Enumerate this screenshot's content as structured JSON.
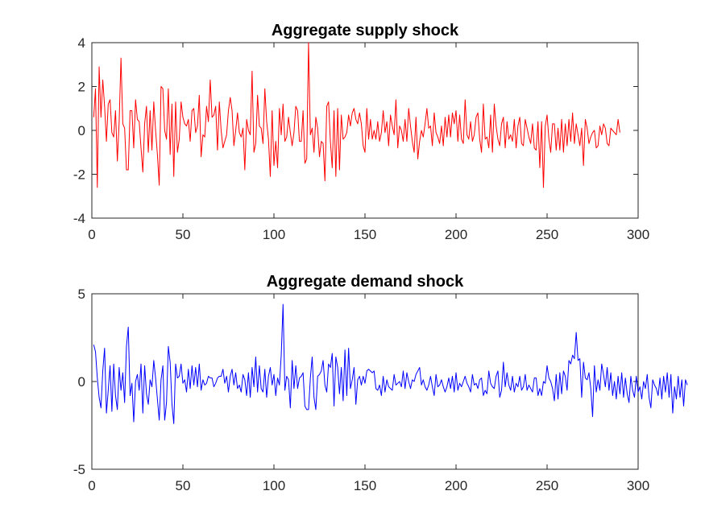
{
  "chart_data": [
    {
      "type": "line",
      "title": "Aggregate supply shock",
      "xlabel": "",
      "ylabel": "",
      "xlim": [
        0,
        300
      ],
      "ylim": [
        -4,
        4
      ],
      "xticks": [
        0,
        50,
        100,
        150,
        200,
        250,
        300
      ],
      "yticks": [
        -4,
        -2,
        0,
        2,
        4
      ],
      "grid": false,
      "series": [
        {
          "color": "#ff0000",
          "x_start": 1,
          "values": [
            0.6,
            1.9,
            -2.6,
            2.9,
            0.6,
            2.3,
            1.1,
            -0.5,
            1.2,
            1.4,
            -0.1,
            -0.3,
            0.9,
            -1.4,
            0.4,
            3.3,
            0.3,
            0.1,
            -1.8,
            -1.8,
            0.9,
            0.9,
            -0.8,
            1.4,
            0.5,
            0.4,
            -0.8,
            -1.9,
            0.3,
            1.1,
            -1.0,
            0.9,
            -0.9,
            1.3,
            0.0,
            -1.1,
            -2.5,
            2.0,
            1.9,
            0.0,
            -0.4,
            1.9,
            -1.1,
            1.2,
            -2.1,
            1.3,
            -1.0,
            -0.4,
            1.3,
            0.6,
            0.3,
            0.2,
            0.5,
            -0.5,
            0.9,
            1.0,
            -0.1,
            0.2,
            1.6,
            -1.2,
            -0.2,
            -0.3,
            1.1,
            0.4,
            2.3,
            0.6,
            0.7,
            1.1,
            -0.9,
            1.3,
            0.0,
            -0.8,
            -0.5,
            -0.2,
            0.9,
            1.5,
            0.9,
            -0.7,
            0.0,
            0.8,
            -0.1,
            -0.3,
            0.1,
            -1.8,
            0.5,
            0.0,
            -0.2,
            2.7,
            -1.0,
            -0.6,
            1.6,
            0.2,
            0.1,
            -0.6,
            1.9,
            0.4,
            -0.4,
            -2.1,
            0.9,
            -1.6,
            -0.5,
            -1.7,
            1.0,
            -0.2,
            1.2,
            -0.5,
            -0.3,
            0.6,
            -0.1,
            -0.7,
            -0.1,
            1.1,
            0.9,
            -0.5,
            -0.5,
            0.9,
            -1.5,
            -1.3,
            4.0,
            -0.2,
            0.1,
            -1.0,
            0.6,
            0.1,
            -1.2,
            -0.5,
            -0.6,
            -2.3,
            1.1,
            1.3,
            -0.5,
            -1.7,
            0.9,
            -2.1,
            1.0,
            -1.8,
            0.7,
            -0.4,
            -0.3,
            -0.1,
            0.7,
            0.2,
            0.8,
            1.0,
            0.5,
            0.3,
            0.8,
            0.3,
            -0.7,
            -1.0,
            1.0,
            -0.4,
            0.5,
            -0.4,
            0.0,
            -0.4,
            0.4,
            -0.5,
            -0.1,
            0.9,
            -0.1,
            0.4,
            -0.7,
            0.7,
            0.2,
            -0.2,
            1.4,
            -0.8,
            0.2,
            0.0,
            -0.5,
            0.5,
            -0.5,
            1.0,
            0.2,
            -0.5,
            -1.0,
            0.6,
            -1.3,
            -0.5,
            0.0,
            -0.3,
            0.3,
            1.0,
            0.1,
            0.2,
            -0.7,
            0.8,
            -0.1,
            -0.3,
            -0.6,
            0.2,
            -0.7,
            0.6,
            -0.3,
            0.7,
            -0.3,
            0.8,
            0.3,
            0.9,
            -0.5,
            0.7,
            -0.4,
            -0.6,
            1.4,
            -0.2,
            -0.4,
            0.4,
            -0.5,
            -0.2,
            0.6,
            0.8,
            -0.4,
            -1.0,
            1.2,
            -0.4,
            -0.3,
            -0.8,
            0.7,
            -1.0,
            1.2,
            0.2,
            -0.4,
            -0.7,
            0.3,
            0.6,
            -0.8,
            0.4,
            -0.4,
            -0.2,
            -0.5,
            0.5,
            -0.8,
            0.2,
            0.6,
            -0.6,
            -0.7,
            0.5,
            0.1,
            -0.3,
            -0.6,
            0.3,
            -0.8,
            -0.9,
            0.4,
            -1.7,
            0.4,
            -2.6,
            0.2,
            0.7,
            -0.4,
            -1.0,
            0.3,
            0.3,
            -0.9,
            0.1,
            -0.9,
            0.5,
            -1.0,
            0.3,
            -0.7,
            0.5,
            -0.5,
            0.8,
            -0.6,
            0.3,
            -0.2,
            -0.7,
            0.1,
            -1.6,
            0.5,
            0.1,
            -0.6,
            -0.3,
            -0.1,
            0.0,
            -0.8,
            -0.7,
            0.2,
            -0.2,
            0.3,
            0.1,
            -0.6,
            -0.7,
            0.1,
            0.0,
            -0.1,
            -0.2,
            0.5,
            -0.1
          ]
        }
      ]
    },
    {
      "type": "line",
      "title": "Aggregate demand shock",
      "xlabel": "",
      "ylabel": "",
      "xlim": [
        0,
        300
      ],
      "ylim": [
        -5,
        5
      ],
      "xticks": [
        0,
        50,
        100,
        150,
        200,
        250,
        300
      ],
      "yticks": [
        -5,
        0,
        5
      ],
      "grid": false,
      "series": [
        {
          "color": "#0000ff",
          "x_start": 1,
          "values": [
            2.1,
            1.7,
            0.2,
            -0.9,
            -1.5,
            0.6,
            1.9,
            -1.8,
            -0.5,
            0.9,
            -1.7,
            1.0,
            -0.8,
            -1.6,
            0.8,
            -0.5,
            0.5,
            -1.2,
            2.0,
            3.1,
            -0.8,
            -0.1,
            -2.3,
            0.0,
            0.4,
            -0.5,
            1.0,
            -1.8,
            0.9,
            -0.7,
            -1.3,
            0.1,
            -0.3,
            1.2,
            0.2,
            -1.0,
            -2.2,
            0.1,
            0.9,
            -2.2,
            -1.2,
            2.0,
            1.1,
            -1.3,
            -2.4,
            1.0,
            0.2,
            0.3,
            1.0,
            -0.1,
            0.1,
            -0.6,
            0.7,
            -0.4,
            0.9,
            -0.2,
            0.8,
            -0.3,
            1.0,
            -0.5,
            0.1,
            -0.2,
            -0.1,
            0.3,
            0.2,
            0.2,
            -0.3,
            -0.1,
            0.2,
            0.3,
            0.3,
            0.7,
            -0.1,
            0.3,
            -0.6,
            0.3,
            0.7,
            -0.2,
            0.5,
            -0.4,
            -0.2,
            -0.6,
            0.4,
            0.1,
            -0.8,
            0.5,
            -0.9,
            0.8,
            -0.3,
            1.4,
            -0.6,
            0.9,
            -0.4,
            -0.6,
            0.7,
            -0.9,
            0.3,
            0.8,
            -0.2,
            0.4,
            -0.8,
            0.2,
            -0.2,
            1.5,
            4.4,
            -0.5,
            0.3,
            0.1,
            -1.5,
            1.2,
            -0.4,
            0.9,
            -0.4,
            0.2,
            0.3,
            0.5,
            -1.4,
            -1.6,
            -1.6,
            0.2,
            1.4,
            -0.9,
            -1.6,
            0.3,
            0.4,
            0.6,
            1.2,
            -0.2,
            -0.6,
            1.0,
            0.8,
            1.6,
            -1.4,
            1.4,
            0.8,
            -0.7,
            0.8,
            -1.1,
            1.8,
            -0.8,
            1.9,
            -0.4,
            0.1,
            0.8,
            -1.3,
            0.1,
            0.3,
            -0.2,
            0.3,
            -0.1,
            0.6,
            0.7,
            0.6,
            0.5,
            0.6,
            -0.4,
            -0.5,
            -0.2,
            -0.8,
            0.3,
            -0.6,
            0.1,
            -0.3,
            -0.4,
            -0.5,
            0.4,
            -0.2,
            -0.1,
            0.0,
            -0.3,
            0.6,
            -0.4,
            0.5,
            0.0,
            -0.4,
            0.1,
            0.0,
            0.4,
            0.6,
            0.8,
            -0.2,
            0.1,
            -0.3,
            -0.5,
            -0.2,
            0.3,
            -0.3,
            -0.8,
            0.4,
            -0.3,
            -0.2,
            0.1,
            -0.3,
            -0.6,
            -0.3,
            0.2,
            -0.4,
            0.3,
            -0.6,
            0.5,
            -0.5,
            -0.1,
            -0.3,
            0.0,
            0.3,
            -0.1,
            -0.3,
            -0.6,
            0.4,
            -0.2,
            -0.1,
            -0.4,
            0.1,
            0.2,
            -0.8,
            -0.5,
            -0.7,
            0.6,
            -0.1,
            -0.3,
            -0.4,
            0.3,
            0.6,
            -0.9,
            -0.5,
            1.1,
            -0.3,
            0.5,
            -0.2,
            -0.5,
            0.3,
            -0.6,
            -0.1,
            -0.3,
            0.3,
            -0.5,
            -0.3,
            0.4,
            -0.5,
            -0.2,
            -0.4,
            -0.6,
            0.2,
            0.2,
            -0.8,
            -0.4,
            -0.8,
            0.0,
            -0.1,
            0.9,
            0.2,
            0.0,
            -0.4,
            -1.1,
            0.4,
            -1.0,
            0.5,
            -0.7,
            0.6,
            0.3,
            -0.5,
            1.2,
            1.0,
            1.5,
            1.3,
            2.8,
            1.2,
            1.3,
            -0.9,
            1.1,
            0.2,
            0.1,
            0.5,
            -0.4,
            -2.0,
            0.9,
            -0.6,
            0.1,
            -0.5,
            1.0,
            0.4,
            -0.3,
            0.8,
            -0.5,
            0.5,
            -0.8,
            0.0,
            -1.0,
            0.3,
            -0.7,
            0.5,
            -0.9,
            0.2,
            -0.7,
            -1.2,
            0.3,
            -0.5,
            -0.9,
            0.3,
            -0.6,
            -0.3,
            -1.0,
            0.0,
            -0.4,
            0.4,
            -0.9,
            -1.5,
            0.1,
            -0.2,
            -0.4,
            -0.8,
            0.2,
            -1.0,
            0.3,
            -0.6,
            0.5,
            -0.9,
            0.4,
            -1.8,
            -0.3,
            -1.0,
            0.3,
            -0.9,
            0.1,
            -1.4,
            0.1,
            -0.2
          ]
        }
      ]
    }
  ]
}
